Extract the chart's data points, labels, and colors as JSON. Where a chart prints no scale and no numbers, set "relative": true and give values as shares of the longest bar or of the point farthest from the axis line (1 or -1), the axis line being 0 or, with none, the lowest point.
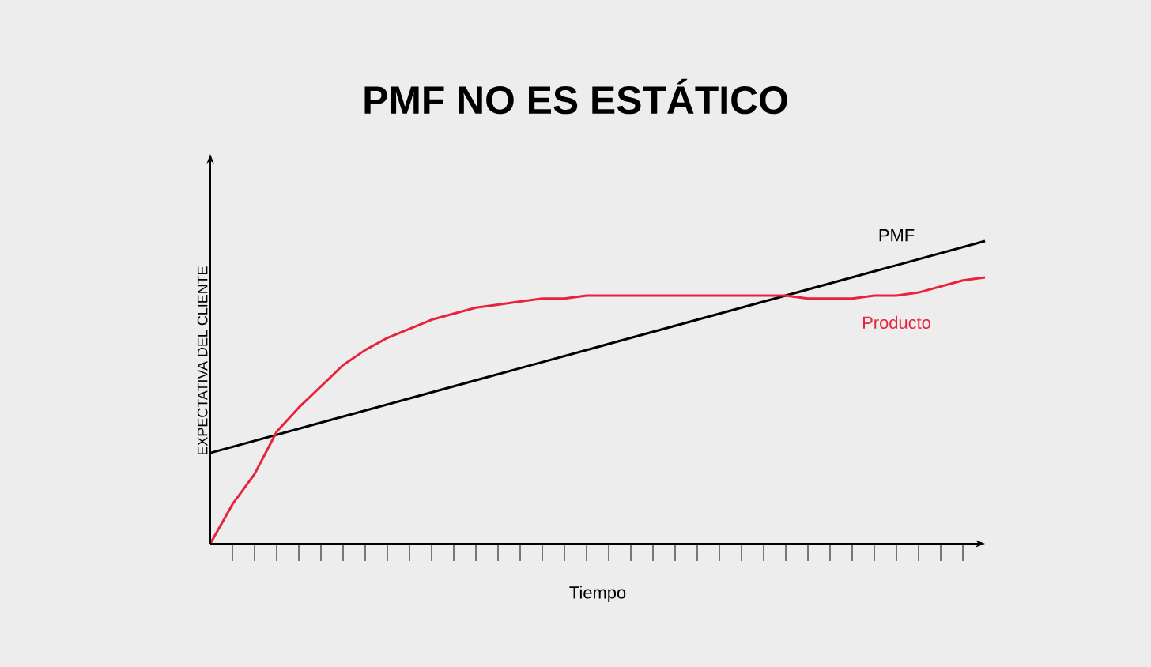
{
  "chart_data": {
    "type": "line",
    "title": "PMF NO ES ESTÁTICO",
    "xlabel": "Tiempo",
    "ylabel": "EXPECTATIVA DEL CLIENTE",
    "relative": true,
    "categories": [
      null,
      null,
      null,
      null,
      null,
      null,
      null,
      null,
      null,
      null,
      null,
      null,
      null,
      null,
      null,
      null,
      null,
      null,
      null,
      null,
      null,
      null,
      null,
      null,
      null,
      null,
      null,
      null,
      null,
      null,
      null,
      null,
      null,
      null,
      null,
      null
    ],
    "series": [
      {
        "name": "PMF",
        "color": "#000000",
        "values": [
          0.3,
          0.32,
          0.34,
          0.36,
          0.38,
          0.4,
          0.42,
          0.44,
          0.46,
          0.48,
          0.5,
          0.52,
          0.54,
          0.56,
          0.58,
          0.6,
          0.62,
          0.64,
          0.66,
          0.68,
          0.7,
          0.72,
          0.74,
          0.76,
          0.78,
          0.8,
          0.82,
          0.84,
          0.86,
          0.88,
          0.9,
          0.92,
          0.94,
          0.96,
          0.98,
          1.0
        ]
      },
      {
        "name": "Producto",
        "color": "#e8233f",
        "values": [
          0,
          0.13,
          0.23,
          0.37,
          0.45,
          0.52,
          0.59,
          0.64,
          0.68,
          0.71,
          0.74,
          0.76,
          0.78,
          0.79,
          0.8,
          0.81,
          0.81,
          0.82,
          0.82,
          0.82,
          0.82,
          0.82,
          0.82,
          0.82,
          0.82,
          0.82,
          0.82,
          0.81,
          0.81,
          0.81,
          0.82,
          0.82,
          0.83,
          0.85,
          0.87,
          0.88
        ]
      }
    ]
  }
}
